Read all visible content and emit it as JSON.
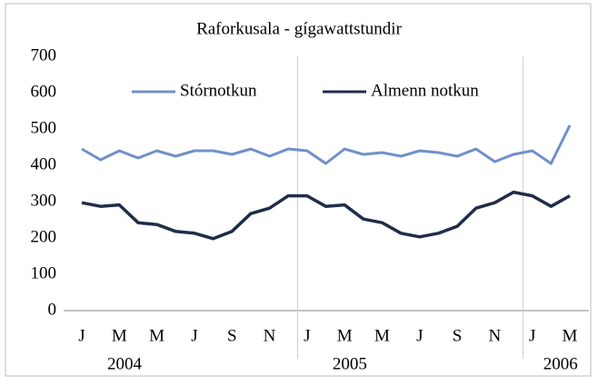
{
  "chart_data": {
    "type": "line",
    "title": "Raforkusala - gígawattstundir",
    "categories": [
      "J",
      null,
      "M",
      null,
      "M",
      null,
      "J",
      null,
      "S",
      null,
      "N",
      null,
      "J",
      null,
      "M",
      null,
      "M",
      null,
      "J",
      null,
      "S",
      null,
      "N",
      null,
      "J",
      null,
      "M"
    ],
    "years": [
      "2004",
      "2005",
      "2006"
    ],
    "series": [
      {
        "name": "Stórnotkun",
        "color": "#7090c8",
        "values": [
          445,
          415,
          440,
          420,
          440,
          425,
          440,
          440,
          430,
          445,
          425,
          445,
          440,
          405,
          445,
          430,
          435,
          425,
          440,
          435,
          425,
          445,
          410,
          430,
          440,
          405,
          510
        ]
      },
      {
        "name": "Almenn notkun",
        "color": "#1f2d4a",
        "values": [
          297,
          287,
          291,
          242,
          237,
          218,
          213,
          198,
          218,
          267,
          282,
          316,
          316,
          287,
          291,
          252,
          242,
          213,
          203,
          213,
          232,
          282,
          297,
          326,
          316,
          287,
          316
        ]
      }
    ],
    "ylim": [
      0,
      700
    ],
    "yticks": [
      0,
      100,
      200,
      300,
      400,
      500,
      600,
      700
    ],
    "grid": false,
    "legend": "top"
  }
}
